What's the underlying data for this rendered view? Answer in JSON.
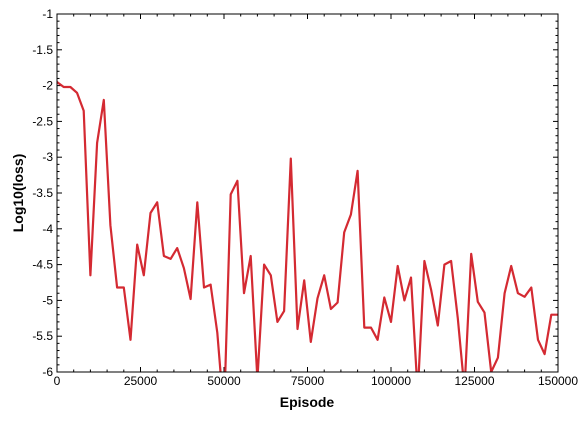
{
  "chart_data": {
    "type": "line",
    "title": "",
    "xlabel": "Episode",
    "ylabel": "Log10(loss)",
    "xlim": [
      0,
      150000
    ],
    "ylim": [
      -6,
      -1
    ],
    "grid": false,
    "x_ticks": [
      0,
      25000,
      50000,
      75000,
      100000,
      125000,
      150000
    ],
    "y_ticks": [
      -1,
      -1.5,
      -2,
      -2.5,
      -3,
      -3.5,
      -4,
      -4.5,
      -5,
      -5.5,
      -6
    ],
    "x_tick_labels": [
      "0",
      "25000",
      "50000",
      "75000",
      "100000",
      "125000",
      "150000"
    ],
    "y_tick_labels": [
      "-1",
      "-1.5",
      "-2",
      "-2.5",
      "-3",
      "-3.5",
      "-4",
      "-4.5",
      "-5",
      "-5.5",
      "-6"
    ],
    "line_color": "#d42a32",
    "series": [
      {
        "name": "",
        "x": [
          0,
          2000,
          4000,
          6000,
          8000,
          10000,
          12000,
          14000,
          16000,
          18000,
          20000,
          22000,
          24000,
          26000,
          28000,
          30000,
          32000,
          34000,
          36000,
          38000,
          40000,
          42000,
          44000,
          46000,
          48000,
          50000,
          52000,
          54000,
          56000,
          58000,
          60000,
          62000,
          64000,
          66000,
          68000,
          70000,
          72000,
          74000,
          76000,
          78000,
          80000,
          82000,
          84000,
          86000,
          88000,
          90000,
          92000,
          94000,
          96000,
          98000,
          100000,
          102000,
          104000,
          106000,
          108000,
          110000,
          112000,
          114000,
          116000,
          118000,
          120000,
          122000,
          124000,
          126000,
          128000,
          130000,
          132000,
          134000,
          136000,
          138000,
          140000,
          142000,
          144000,
          146000,
          148000,
          150000
        ],
        "values": [
          -1.95,
          -2.02,
          -2.02,
          -2.1,
          -2.35,
          -4.65,
          -2.8,
          -2.2,
          -3.95,
          -4.82,
          -4.82,
          -5.55,
          -4.22,
          -4.65,
          -3.78,
          -3.63,
          -4.38,
          -4.42,
          -4.27,
          -4.55,
          -4.98,
          -3.63,
          -4.82,
          -4.78,
          -5.45,
          -6.6,
          -3.52,
          -3.33,
          -4.9,
          -4.38,
          -6.1,
          -4.5,
          -4.65,
          -5.3,
          -5.15,
          -3.02,
          -5.4,
          -4.72,
          -5.58,
          -4.97,
          -4.65,
          -5.12,
          -5.03,
          -4.05,
          -3.8,
          -3.19,
          -5.38,
          -5.38,
          -5.55,
          -4.96,
          -5.3,
          -4.52,
          -5.0,
          -4.68,
          -6.3,
          -4.45,
          -4.85,
          -5.35,
          -4.5,
          -4.45,
          -5.25,
          -6.25,
          -4.35,
          -5.02,
          -5.17,
          -6.0,
          -5.8,
          -4.9,
          -4.52,
          -4.9,
          -4.95,
          -4.82,
          -5.55,
          -5.75,
          -5.2,
          -5.2
        ]
      }
    ]
  }
}
